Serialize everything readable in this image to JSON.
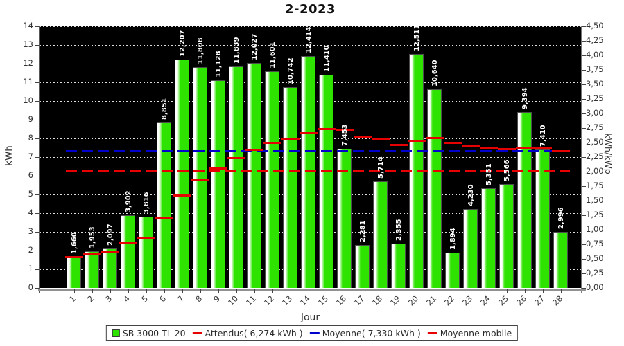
{
  "title": "2-2023",
  "axes": {
    "x_label": "Jour",
    "y_left_label": "kWh",
    "y_right_label": "kWh/kWp"
  },
  "legend": {
    "items": [
      {
        "label": "SB 3000 TL 20",
        "marker": "square",
        "color": "#2fe300"
      },
      {
        "label": "Attendus( 6,274 kWh )",
        "marker": "line",
        "color": "#e60000"
      },
      {
        "label": "Moyenne( 7,330 kWh )",
        "marker": "line",
        "color": "#0000cc"
      },
      {
        "label": "Moyenne mobile",
        "marker": "line",
        "color": "#e60000"
      }
    ]
  },
  "chart_data": {
    "type": "bar",
    "title": "2-2023",
    "xlabel": "Jour",
    "ylabel_left": "kWh",
    "ylabel_right": "kWh/kWp",
    "ylim_left": [
      0,
      14
    ],
    "ylim_right": [
      0,
      4.5
    ],
    "grid": true,
    "plot_bg": "#000000",
    "grid_color": "#dcdcdc",
    "yticks_left": [
      0,
      1,
      2,
      3,
      4,
      5,
      6,
      7,
      8,
      9,
      10,
      11,
      12,
      13,
      14
    ],
    "yticks_right_labels": [
      "0,00",
      "0,25",
      "0,50",
      "0,75",
      "1,00",
      "1,25",
      "1,50",
      "1,75",
      "2,00",
      "2,25",
      "2,50",
      "2,75",
      "3,00",
      "3,25",
      "3,50",
      "3,75",
      "4,00",
      "4,25",
      "4,50"
    ],
    "yticks_right_step": 0.25,
    "categories": [
      1,
      2,
      3,
      4,
      5,
      6,
      7,
      8,
      9,
      10,
      11,
      12,
      13,
      14,
      15,
      16,
      17,
      18,
      19,
      20,
      21,
      22,
      23,
      24,
      25,
      26,
      27,
      28
    ],
    "series": [
      {
        "name": "SB 3000 TL 20",
        "type": "bar",
        "color": "#2fe300",
        "values": [
          1.66,
          1.953,
          2.097,
          3.902,
          3.816,
          8.851,
          12.207,
          11.808,
          11.128,
          11.839,
          12.027,
          11.601,
          10.742,
          12.414,
          11.41,
          7.453,
          2.281,
          5.714,
          2.355,
          12.511,
          10.64,
          1.894,
          4.23,
          5.351,
          5.566,
          9.394,
          7.41,
          2.996
        ],
        "labels": [
          "1,660",
          "1,953",
          "2,097",
          "3,902",
          "3,816",
          "8,851",
          "12,207",
          "11,808",
          "11,128",
          "11,839",
          "12,027",
          "11,601",
          "10,742",
          "12,414",
          "11,410",
          "7,453",
          "2,281",
          "5,714",
          "2,355",
          "12,511",
          "10,640",
          "1,894",
          "4,230",
          "5,351",
          "5,566",
          "9,394",
          "7,410",
          "2,996"
        ]
      },
      {
        "name": "Attendus( 6,274 kWh )",
        "type": "hline",
        "style": "dashed",
        "color": "#e60000",
        "value": 6.274
      },
      {
        "name": "Moyenne( 7,330 kWh )",
        "type": "hline",
        "style": "dashed",
        "color": "#0000cc",
        "value": 7.33
      },
      {
        "name": "Moyenne mobile",
        "type": "step",
        "color": "#e60000",
        "values": [
          1.66,
          1.807,
          1.903,
          2.403,
          2.686,
          3.713,
          4.927,
          5.787,
          6.38,
          6.926,
          7.39,
          7.741,
          7.972,
          8.289,
          8.497,
          8.432,
          8.07,
          7.939,
          7.645,
          7.888,
          8.019,
          7.741,
          7.588,
          7.495,
          7.418,
          7.494,
          7.491,
          7.33
        ]
      }
    ]
  }
}
